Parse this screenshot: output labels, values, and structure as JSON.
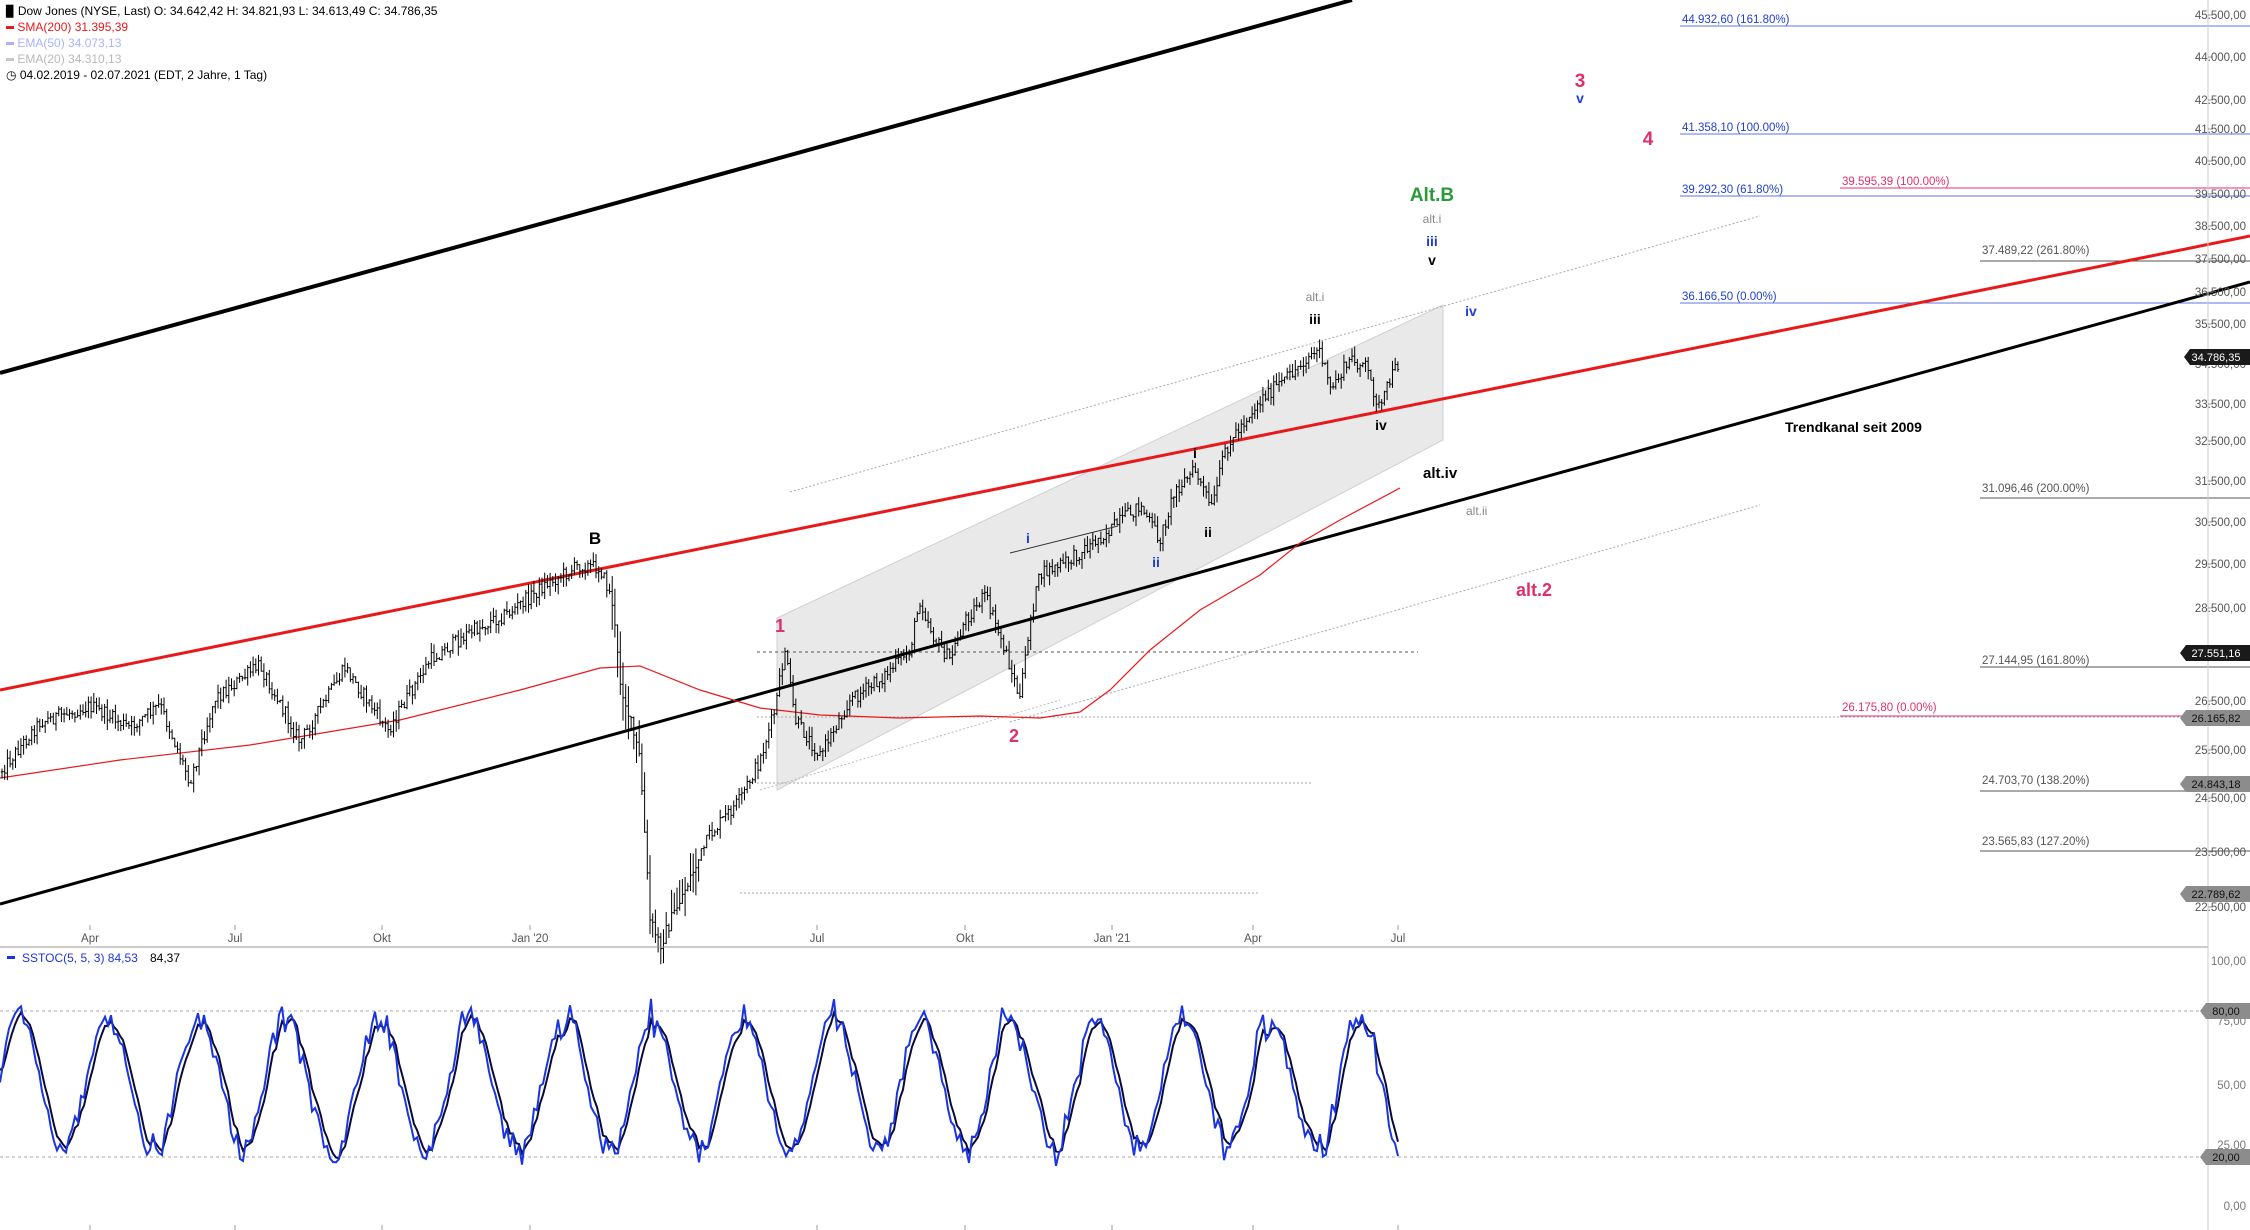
{
  "header": {
    "title_line": "Dow Jones (NYSE, Last)  O: 34.642,42  H: 34.821,93  L: 34.613,49  C: 34.786,35",
    "sma200_label": "SMA(200)  31.395,39",
    "ema50_label": "EMA(50)  34.073,13",
    "ema20_label": "EMA(20)  34.310,13",
    "range_label": "04.02.2019 - 02.07.2021   (EDT, 2 Jahre, 1 Tag)",
    "chart_icon": "bar-chart-icon",
    "clock_icon": "clock-icon"
  },
  "colors": {
    "price_bars": "#000000",
    "sma200": "#e8191b",
    "ema50": "#a9b3ff",
    "ema20": "#b9b9b9",
    "trend_red": "#e8191b",
    "trend_black": "#000000",
    "fib_blue": "#1f3fd1",
    "fib_pink": "#e0306a",
    "fib_gray": "#555555",
    "stoch_k": "#1a35e0",
    "stoch_d": "#0a0a3a",
    "wave_green": "#2a9a3a"
  },
  "price_axis": {
    "ticks": [
      "45.500,00",
      "44.000,00",
      "42.500,00",
      "41.500,00",
      "40.500,00",
      "39.500,00",
      "38.500,00",
      "37.500,00",
      "36.500,00",
      "35.500,00",
      "34.500,00",
      "33.500,00",
      "32.500,00",
      "31.500,00",
      "30.500,00",
      "29.500,00",
      "28.500,00",
      "27.500,00",
      "26.500,00",
      "25.500,00",
      "24.500,00",
      "23.500,00",
      "22.500,00"
    ],
    "current_price": "34.786,35",
    "level_27551": "27.551,16",
    "level_26165": "26.165,82",
    "level_24843": "24.843,18",
    "level_22789": "22.789,62"
  },
  "time_axis": {
    "labels": [
      "Apr",
      "Jul",
      "Okt",
      "Jan '20",
      "Jul",
      "Okt",
      "Jan '21",
      "Apr",
      "Jul"
    ]
  },
  "fib_levels": {
    "blue_1": "44.932,60 (161.80%)",
    "blue_2": "41.358,10 (100.00%)",
    "blue_3": "39.292,30 (61.80%)",
    "blue_4": "36.166,50 (0.00%)",
    "pink_1": "39.595,39 (100.00%)",
    "pink_2": "26.175,80 (0.00%)",
    "gray_1": "37.489,22 (261.80%)",
    "gray_2": "31.096,46 (200.00%)",
    "gray_3": "27.144,95 (161.80%)",
    "gray_4": "24.703,70 (138.20%)",
    "gray_5": "23.565,83 (127.20%)"
  },
  "wave_labels": {
    "B": "B",
    "w1": "1",
    "w2": "2",
    "w3": "3",
    "w4": "4",
    "v_blue": "v",
    "altB": "Alt.B",
    "alti_top": "alt.i",
    "iii_blue": "iii",
    "v_black": "v",
    "alti": "alt.i",
    "iii_black": "iii",
    "iv_blue": "iv",
    "iv_black": "iv",
    "altiv": "alt.iv",
    "altii": "alt.ii",
    "alt2": "alt.2",
    "i_blue": "i",
    "ii_blue": "ii",
    "i_black": "i",
    "ii_black": "ii",
    "trendkanal": "Trendkanal seit 2009"
  },
  "stoch": {
    "label": "SSTOC(5, 5, 3)  84,53",
    "value2": "84,37",
    "ticks": [
      "100,00",
      "75,00",
      "50,00",
      "25,00",
      "0,00"
    ],
    "tag_80": "80,00",
    "tag_20": "20,00"
  }
}
